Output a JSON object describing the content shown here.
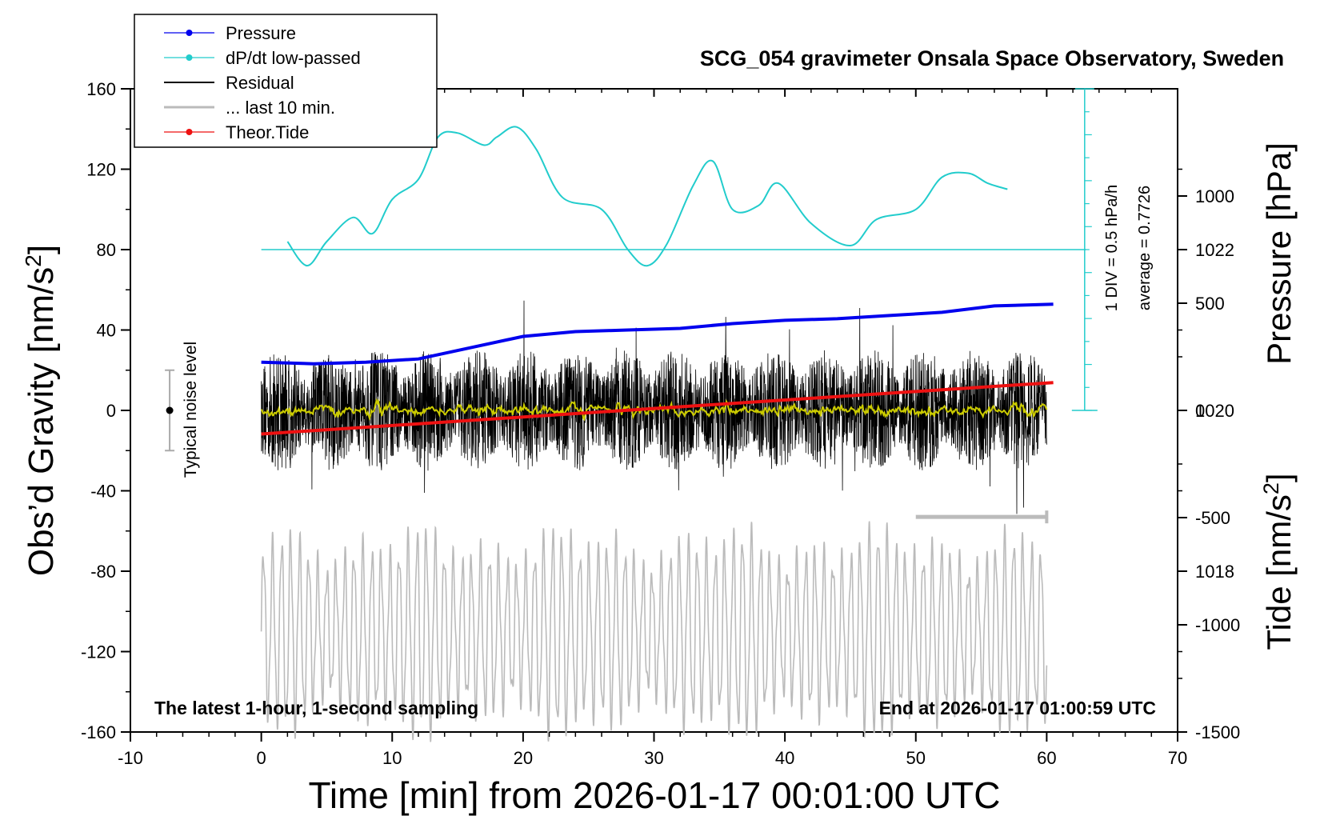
{
  "chart_data": {
    "type": "line",
    "title": "SCG_054 gravimeter Onsala Space Observatory, Sweden",
    "xlabel": "Time [min] from 2026-01-17 00:01:00 UTC",
    "ylabel_left": "Obs’d Gravity [nm/s",
    "ylabel_left_sup": "2",
    "ylabel_left_end": "]",
    "ylabel_pressure": "Pressure [hPa]",
    "ylabel_tide": "Tide [nm/s",
    "ylabel_tide_sup": "2",
    "ylabel_tide_end": "]",
    "xlim": [
      -10,
      70
    ],
    "ylim_gravity": [
      -160,
      160
    ],
    "pressure_range": [
      1016,
      1024
    ],
    "tide_range": [
      -1500,
      1500
    ],
    "grid": false,
    "legend_position": "top-left",
    "x_ticks": [
      "-10",
      "0",
      "10",
      "20",
      "30",
      "40",
      "50",
      "60",
      "70"
    ],
    "y_ticks_left": [
      "160",
      "120",
      "80",
      "40",
      "0",
      "-40",
      "-80",
      "-120",
      "-160"
    ],
    "y_ticks_pressure": [
      "1022",
      "1020",
      "1018"
    ],
    "y_ticks_tide": [
      "1000",
      "500",
      "0",
      "-500",
      "-1000",
      "-1500"
    ],
    "legend": [
      {
        "label": "Pressure",
        "color": "#0000ee",
        "marker": true
      },
      {
        "label": "dP/dt low-passed",
        "color": "#22cccc",
        "marker": true
      },
      {
        "label": "Residual",
        "color": "#000000",
        "marker": false
      },
      {
        "label": "... last 10 min.",
        "color": "#bbbbbb",
        "marker": false
      },
      {
        "label": "Theor.Tide",
        "color": "#ee1111",
        "marker": true
      }
    ],
    "annotations": {
      "bottom_left": "The latest 1-hour, 1-second sampling",
      "bottom_right": "End at 2026-01-17 01:00:59 UTC",
      "noise_label": "Typical noise level",
      "dpdt_div": "1 DIV = 0.5 hPa/h",
      "dpdt_avg": "average = 0.7726"
    },
    "series": [
      {
        "name": "Pressure",
        "axis": "pressure",
        "color": "#0000ee",
        "x": [
          0,
          4,
          8,
          12,
          16,
          20,
          24,
          28,
          32,
          36,
          40,
          44,
          48,
          52,
          56,
          60.5
        ],
        "values": [
          1020.6,
          1020.58,
          1020.6,
          1020.64,
          1020.78,
          1020.92,
          1020.98,
          1021.0,
          1021.02,
          1021.08,
          1021.12,
          1021.14,
          1021.18,
          1021.22,
          1021.3,
          1021.32
        ]
      },
      {
        "name": "dP/dt low-passed",
        "axis": "gravity",
        "color": "#22cccc",
        "x": [
          2,
          3.5,
          5,
          7,
          8.5,
          10,
          12,
          13.5,
          15,
          17,
          18,
          19.5,
          21,
          23,
          26,
          28,
          29.5,
          31,
          33,
          34.5,
          36,
          38,
          39.5,
          42,
          45,
          47,
          50,
          52,
          54,
          55.5,
          57
        ],
        "values": [
          84,
          72,
          84,
          96,
          88,
          105,
          115,
          136,
          138,
          132,
          136,
          141,
          130,
          106,
          100,
          80,
          72,
          83,
          112,
          124,
          100,
          102,
          113,
          93,
          82,
          95,
          100,
          116,
          118,
          113,
          110
        ]
      },
      {
        "name": "Theor.Tide",
        "axis": "tide",
        "color": "#ee1111",
        "x": [
          0,
          60.5
        ],
        "values": [
          -110,
          130
        ]
      }
    ],
    "residual": {
      "name": "Residual",
      "x_range": [
        0,
        60
      ],
      "amplitude_typical": 25,
      "amplitude_max": 73,
      "color": "#000000",
      "smooth_color": "#cccc00"
    },
    "last_10_min": {
      "name": "... last 10 min.",
      "x_range": [
        0,
        60
      ],
      "center": -110,
      "amplitude": 45,
      "color": "#bbbbbb",
      "bracket_x": [
        50,
        60
      ],
      "bracket_y": -53
    },
    "noise_bar": {
      "x": -7,
      "center": 0,
      "half_range": 20
    },
    "dpdt_baseline": 80
  }
}
